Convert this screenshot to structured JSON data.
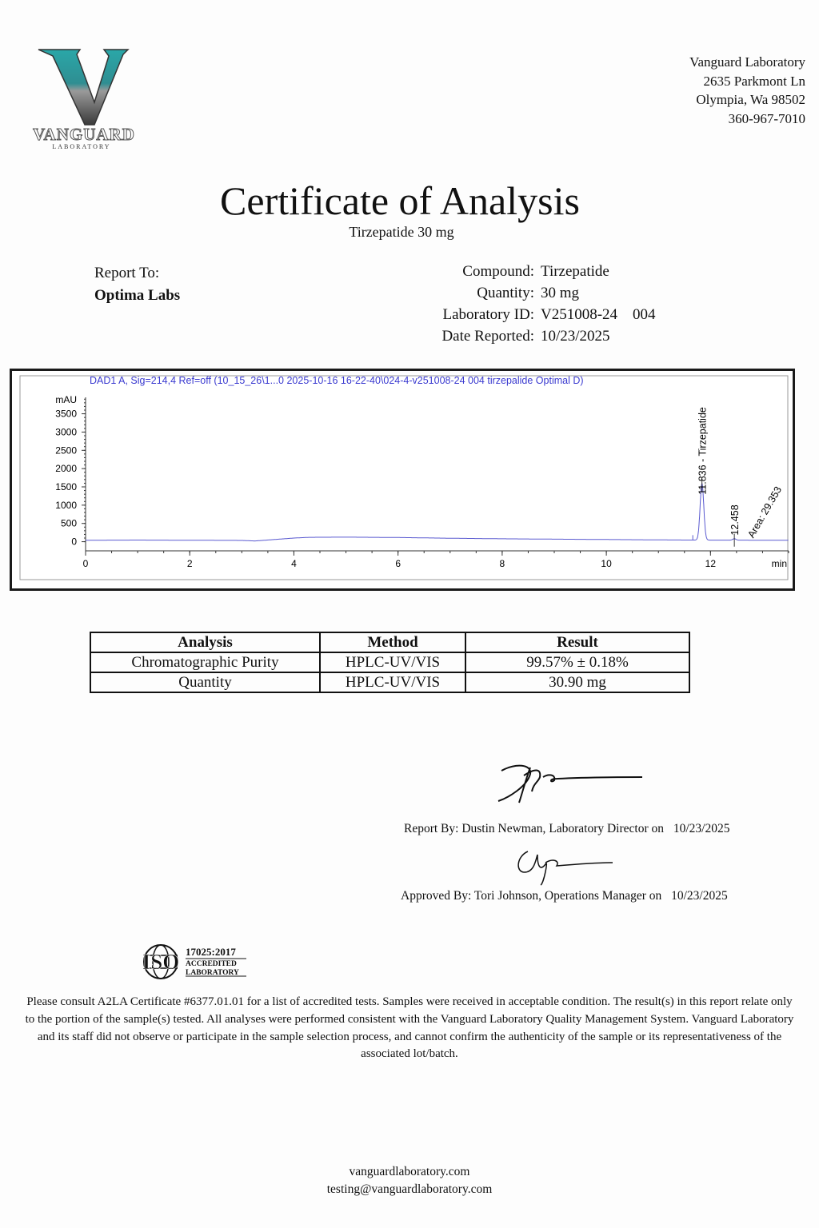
{
  "logo": {
    "letter": "V",
    "name": "VANGUARD",
    "sub": "LABORATORY",
    "colors": {
      "teal": "#2aa7a8",
      "grey": "#7d7d7d"
    }
  },
  "address": {
    "name": "Vanguard Laboratory",
    "street": "2635 Parkmont Ln",
    "city": "Olympia, Wa 98502",
    "phone": "360-967-7010"
  },
  "title": "Certificate of Analysis",
  "subtitle": "Tirzepatide 30 mg",
  "report_to": {
    "label": "Report To:",
    "value": "Optima Labs"
  },
  "meta": [
    {
      "label": "Compound:",
      "value": "Tirzepatide"
    },
    {
      "label": "Quantity:",
      "value": "30 mg"
    },
    {
      "label": "Laboratory ID:",
      "value": "V251008-24    004"
    },
    {
      "label": "Date Reported:",
      "value": "10/23/2025"
    }
  ],
  "chromatogram": {
    "header": "DAD1 A, Sig=214,4 Ref=off (10_15_26\\1...0 2025-10-16 16-22-40\\024-4-v251008-24 004 tirzepalide Optimal D)",
    "y_unit": "mAU",
    "x_unit": "min",
    "y_ticks": [
      "0",
      "500",
      "1000",
      "1500",
      "2000",
      "2500",
      "3000",
      "3500"
    ],
    "x_ticks": [
      "0",
      "2",
      "4",
      "6",
      "8",
      "10",
      "12"
    ],
    "xlim": [
      0,
      13.5
    ],
    "ylim": [
      -250,
      3950
    ],
    "trace_color": "#5a5ad0",
    "baseline": [
      [
        0,
        40
      ],
      [
        1,
        45
      ],
      [
        2,
        40
      ],
      [
        3,
        35
      ],
      [
        3.25,
        20
      ],
      [
        4,
        100
      ],
      [
        4.3,
        120
      ],
      [
        5,
        125
      ],
      [
        6,
        115
      ],
      [
        7,
        95
      ],
      [
        8,
        80
      ],
      [
        9,
        70
      ],
      [
        10,
        60
      ],
      [
        11,
        50
      ],
      [
        11.6,
        45
      ],
      [
        13.5,
        40
      ]
    ],
    "peaks": [
      {
        "rt": 11.836,
        "height": 1550,
        "label": "11.836 - Tirzepatide"
      },
      {
        "rt": 12.458,
        "height": 40,
        "label": "12.458"
      }
    ],
    "annotation": "Area: 29.353"
  },
  "table": {
    "headers": [
      "Analysis",
      "Method",
      "Result"
    ],
    "rows": [
      [
        "Chromatographic Purity",
        "HPLC-UV/VIS",
        "99.57% ± 0.18%"
      ],
      [
        "Quantity",
        "HPLC-UV/VIS",
        "30.90 mg"
      ]
    ]
  },
  "signatures": [
    {
      "text": "Report By: Dustin Newman, Laboratory Director on",
      "date": "10/23/2025"
    },
    {
      "text": "Approved By: Tori Johnson, Operations Manager on",
      "date": "10/23/2025"
    }
  ],
  "iso": {
    "mark": "ISO",
    "standard": "17025:2017",
    "line1": "ACCREDITED",
    "line2": "LABORATORY"
  },
  "disclaimer": "Please consult A2LA Certificate #6377.01.01 for a list of accredited tests. Samples were received in acceptable condition. The result(s) in this report relate only to the portion of the sample(s) tested. All analyses were performed consistent with the Vanguard Laboratory Quality Management System. Vanguard Laboratory and its staff did not observe or participate in the sample selection process, and cannot confirm the authenticity of the sample or its representativeness of the associated lot/batch.",
  "footer": {
    "website": "vanguardlaboratory.com",
    "email": "testing@vanguardlaboratory.com"
  }
}
